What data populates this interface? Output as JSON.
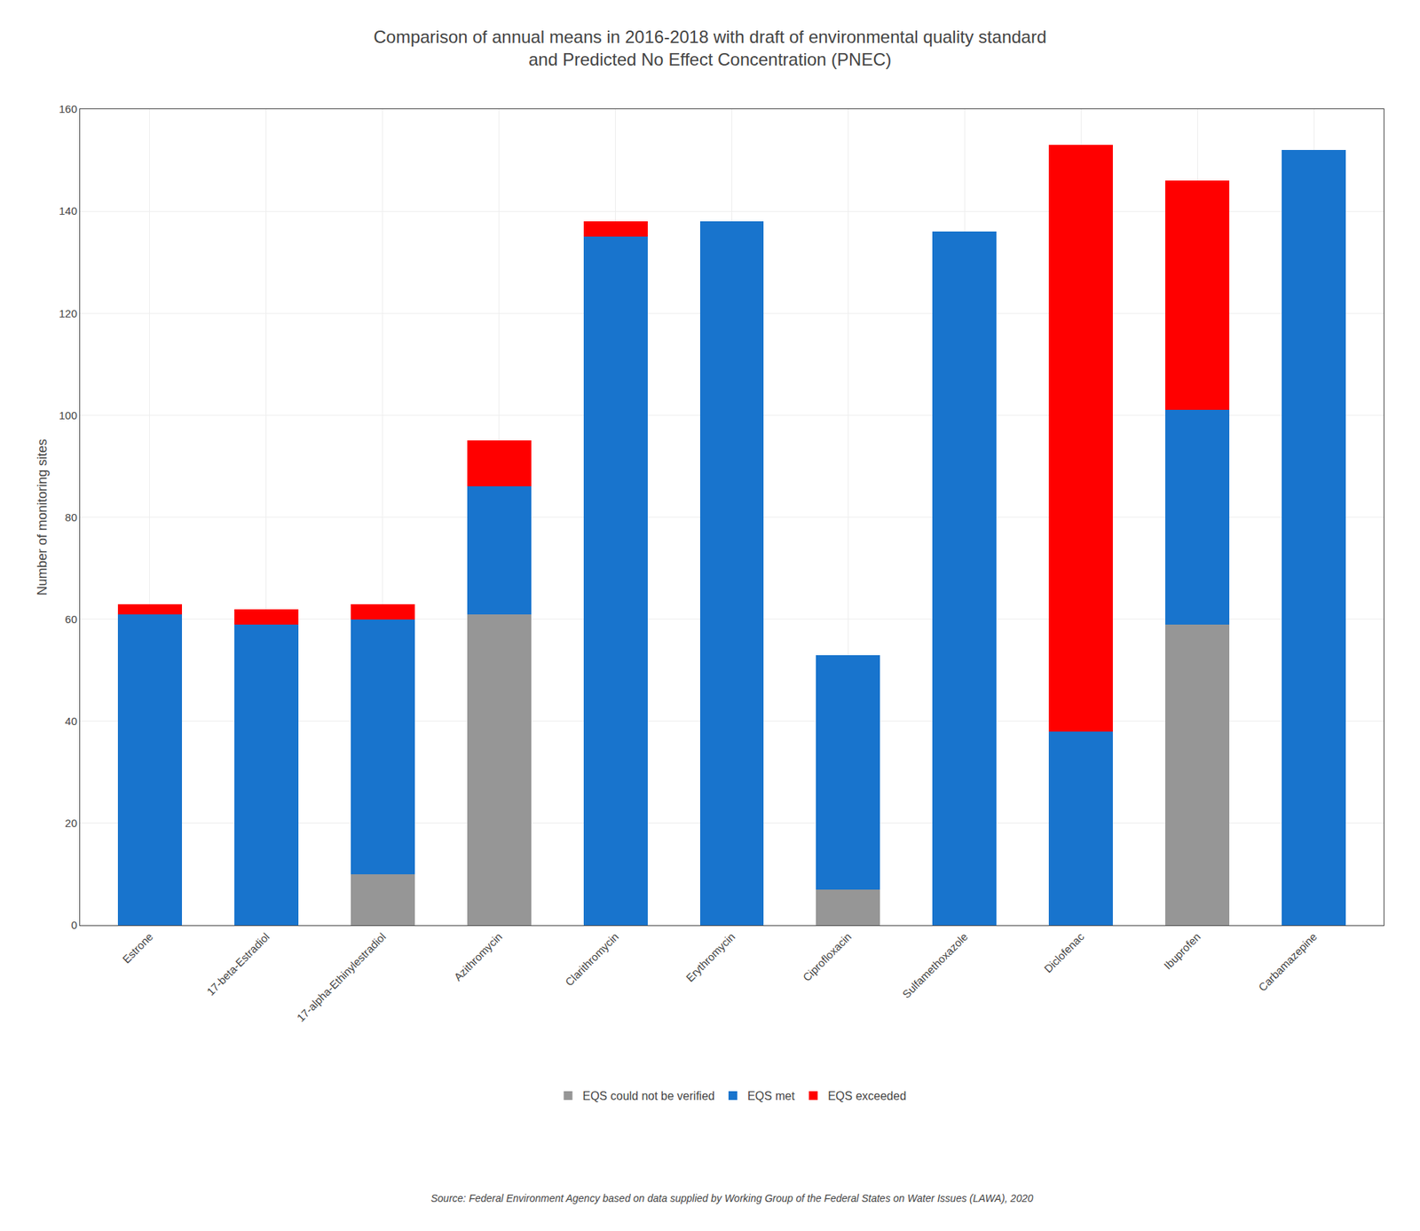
{
  "chart_data": {
    "type": "bar",
    "stacked": true,
    "title": "Comparison of annual means in 2016-2018 with draft of environmental quality standard",
    "subtitle": "and Predicted No Effect Concentration (PNEC)",
    "ylabel": "Number of monitoring sites",
    "annotations": [
      "Source: Federal Environment Agency based on data supplied by Working Group of the Federal States on Water Issues (LAWA), 2020"
    ],
    "categories": [
      "Estrone",
      "17-beta-Estradiol",
      "17-alpha-Ethinylestradiol",
      "Azithromycin",
      "Clarithromycin",
      "Erythromycin",
      "Ciprofloxacin",
      "Sulfamethoxazole",
      "Diclofenac",
      "Ibuprofen",
      "Carbamazepine"
    ],
    "series": [
      {
        "name": "EQS could not be verified",
        "color": "#969696",
        "values": [
          0,
          0,
          10,
          61,
          0,
          0,
          7,
          0,
          0,
          59,
          0
        ]
      },
      {
        "name": "EQS met",
        "color": "#1874CD",
        "values": [
          61,
          59,
          50,
          25,
          135,
          138,
          46,
          136,
          38,
          42,
          152
        ]
      },
      {
        "name": "EQS exceeded",
        "color": "#FF0000",
        "values": [
          2,
          3,
          3,
          9,
          3,
          0,
          0,
          0,
          115,
          45,
          0
        ]
      }
    ],
    "ylim": [
      0,
      160
    ],
    "yticks": [
      0,
      20,
      40,
      60,
      80,
      100,
      120,
      140,
      160
    ],
    "grid": true,
    "legend": "bottom"
  }
}
